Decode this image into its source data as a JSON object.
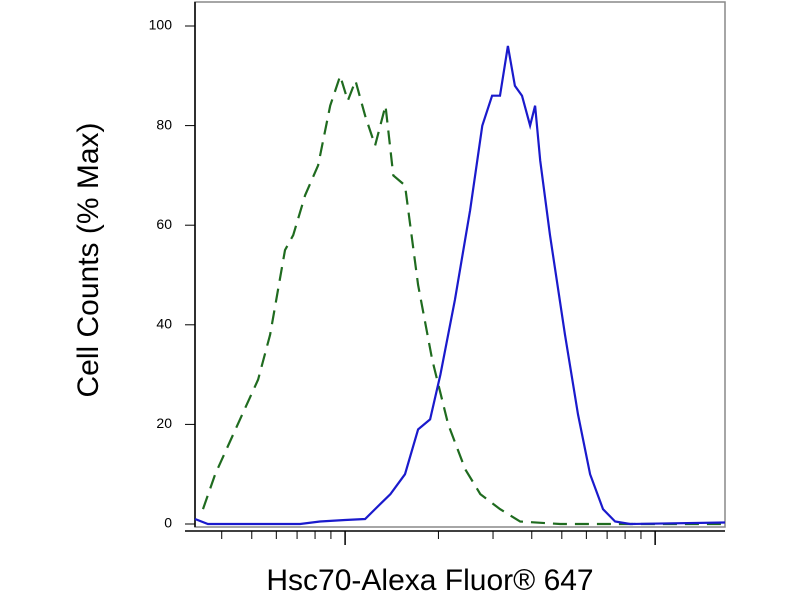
{
  "chart_data": {
    "type": "line",
    "y_label": "Cell Counts (% Max)",
    "x_label": "Hsc70-Alexa Fluor® 647",
    "x_scale": "log",
    "xlim": [
      32.8,
      1680
    ],
    "x_major_ticks": [
      100,
      1000
    ],
    "x_minor_ticks": [
      40,
      50,
      60,
      70,
      80,
      90,
      200,
      300,
      400,
      500,
      600,
      700,
      800,
      900
    ],
    "ylim": [
      0,
      100
    ],
    "yticks": [
      0,
      20,
      40,
      60,
      80,
      100
    ],
    "series": [
      {
        "color": "#1f6b1f",
        "dash": true,
        "x": [
          34.8,
          38.1,
          45.8,
          52.4,
          57.3,
          64.0,
          68.0,
          74.3,
          81.8,
          89.5,
          96.4,
          102,
          108,
          116,
          125,
          135,
          143,
          156,
          172,
          191,
          215,
          244,
          273,
          316,
          367,
          494,
          1680
        ],
        "values": [
          3,
          10,
          21,
          29,
          38,
          55,
          58,
          66,
          72,
          84,
          90,
          85,
          89,
          82,
          76,
          84,
          70,
          68,
          48,
          33,
          20,
          11,
          6,
          3,
          0.5,
          0,
          0
        ]
      },
      {
        "color": "#1a1acc",
        "dash": false,
        "x": [
          32.8,
          36.1,
          71.6,
          83.0,
          100,
          116,
          125,
          140,
          156,
          172,
          188,
          203,
          226,
          253,
          277,
          298,
          316,
          335,
          353,
          372,
          395,
          410,
          426,
          458,
          512,
          564,
          617,
          679,
          743,
          830,
          1680
        ],
        "values": [
          1,
          0,
          0,
          0.5,
          0.8,
          1,
          3,
          6,
          10,
          19,
          21,
          30,
          45,
          63,
          80,
          86,
          86,
          96,
          88,
          86,
          80,
          84,
          73,
          58,
          38,
          22,
          10,
          3,
          0.5,
          0,
          0.3
        ]
      }
    ]
  }
}
